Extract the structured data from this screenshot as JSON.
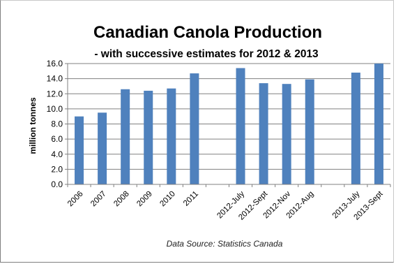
{
  "chart_data": {
    "type": "bar",
    "title": "Canadian Canola Production",
    "subtitle": "- with successive estimates for 2012 & 2013",
    "ylabel": "million tonnes",
    "xlabel": "",
    "ylim": [
      0,
      16
    ],
    "yticks": [
      0,
      2,
      4,
      6,
      8,
      10,
      12,
      14,
      16
    ],
    "ytick_labels": [
      "0.0",
      "2.0",
      "4.0",
      "6.0",
      "8.0",
      "10.0",
      "12.0",
      "14.0",
      "16.0"
    ],
    "categories": [
      "2006",
      "2007",
      "2008",
      "2009",
      "2010",
      "2011",
      "",
      "2012-July",
      "2012-Sept",
      "2012-Nov",
      "2012-Aug",
      "",
      "2013-July",
      "2013-Sept"
    ],
    "values": [
      9.0,
      9.5,
      12.6,
      12.4,
      12.7,
      14.7,
      null,
      15.4,
      13.4,
      13.3,
      13.9,
      null,
      14.8,
      16.0
    ],
    "bar_color": "#4f81bd",
    "grid": true,
    "legend": "none",
    "source": "Data Source: Statistics Canada"
  }
}
